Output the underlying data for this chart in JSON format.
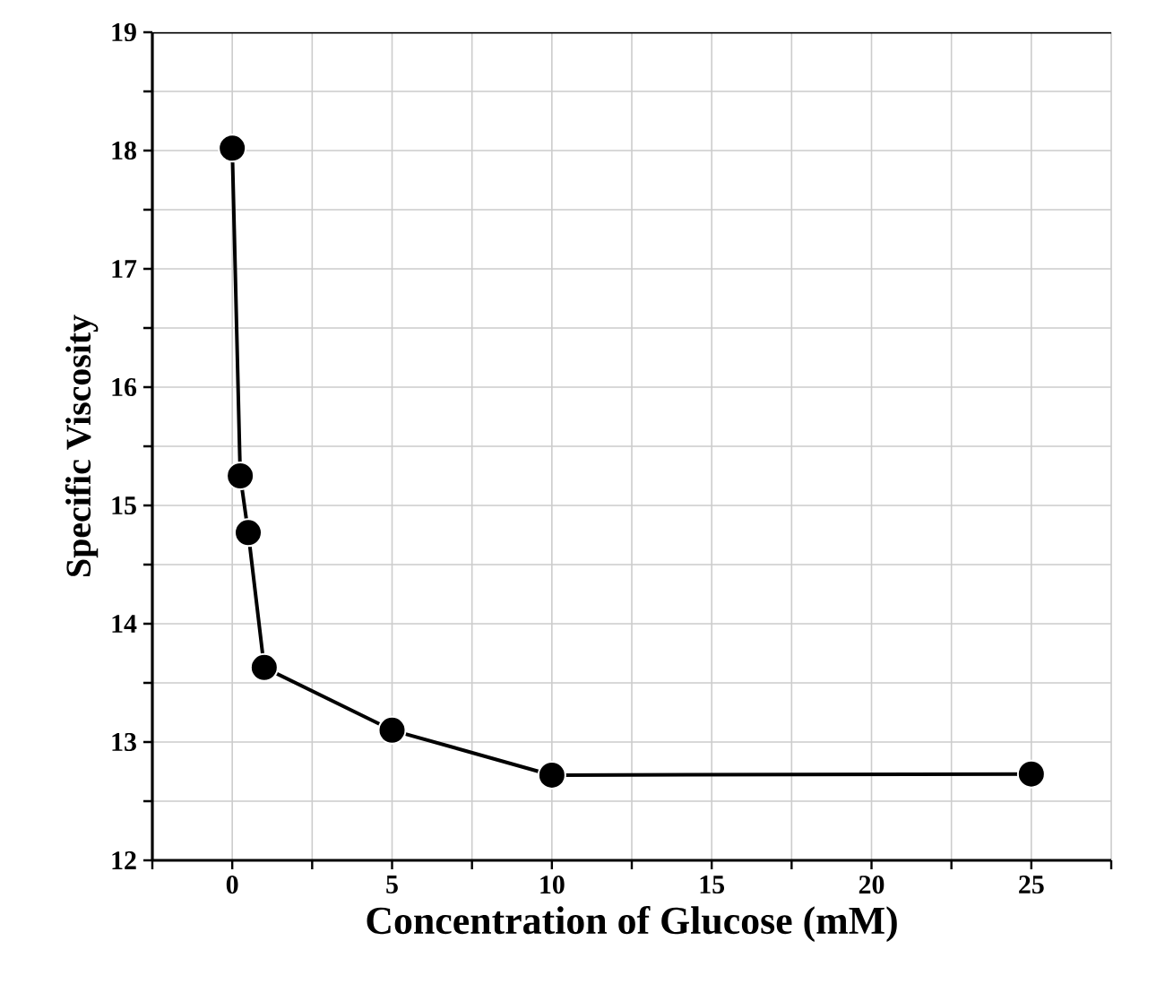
{
  "chart_data": {
    "type": "line",
    "xlabel": "Concentration of Glucose (mM)",
    "ylabel": "Specific Viscosity",
    "x": [
      0,
      0.25,
      0.5,
      1,
      5,
      10,
      25
    ],
    "series": [
      {
        "color": "#000000",
        "values": [
          18.02,
          15.25,
          14.77,
          13.63,
          13.1,
          12.72,
          12.73
        ]
      }
    ],
    "xlim": [
      -2.5,
      27.5
    ],
    "xticks": [
      {
        "value": -2.5,
        "label": null
      },
      0,
      {
        "value": 2.5,
        "label": null
      },
      5,
      {
        "value": 7.5,
        "label": null
      },
      10,
      {
        "value": 12.5,
        "label": null
      },
      15,
      {
        "value": 17.5,
        "label": null
      },
      20,
      {
        "value": 22.5,
        "label": null
      },
      25,
      {
        "value": 27.5,
        "label": null
      }
    ],
    "ylim": [
      12,
      19
    ],
    "yticks": [
      12,
      {
        "value": 12.5,
        "label": null
      },
      13,
      {
        "value": 13.5,
        "label": null
      },
      14,
      {
        "value": 14.5,
        "label": null
      },
      15,
      {
        "value": 15.5,
        "label": null
      },
      16,
      {
        "value": 16.5,
        "label": null
      },
      17,
      {
        "value": 17.5,
        "label": null
      },
      18,
      {
        "value": 18.5,
        "label": null
      },
      19
    ],
    "grid": true,
    "marker": "circle",
    "line_style": "solid"
  }
}
